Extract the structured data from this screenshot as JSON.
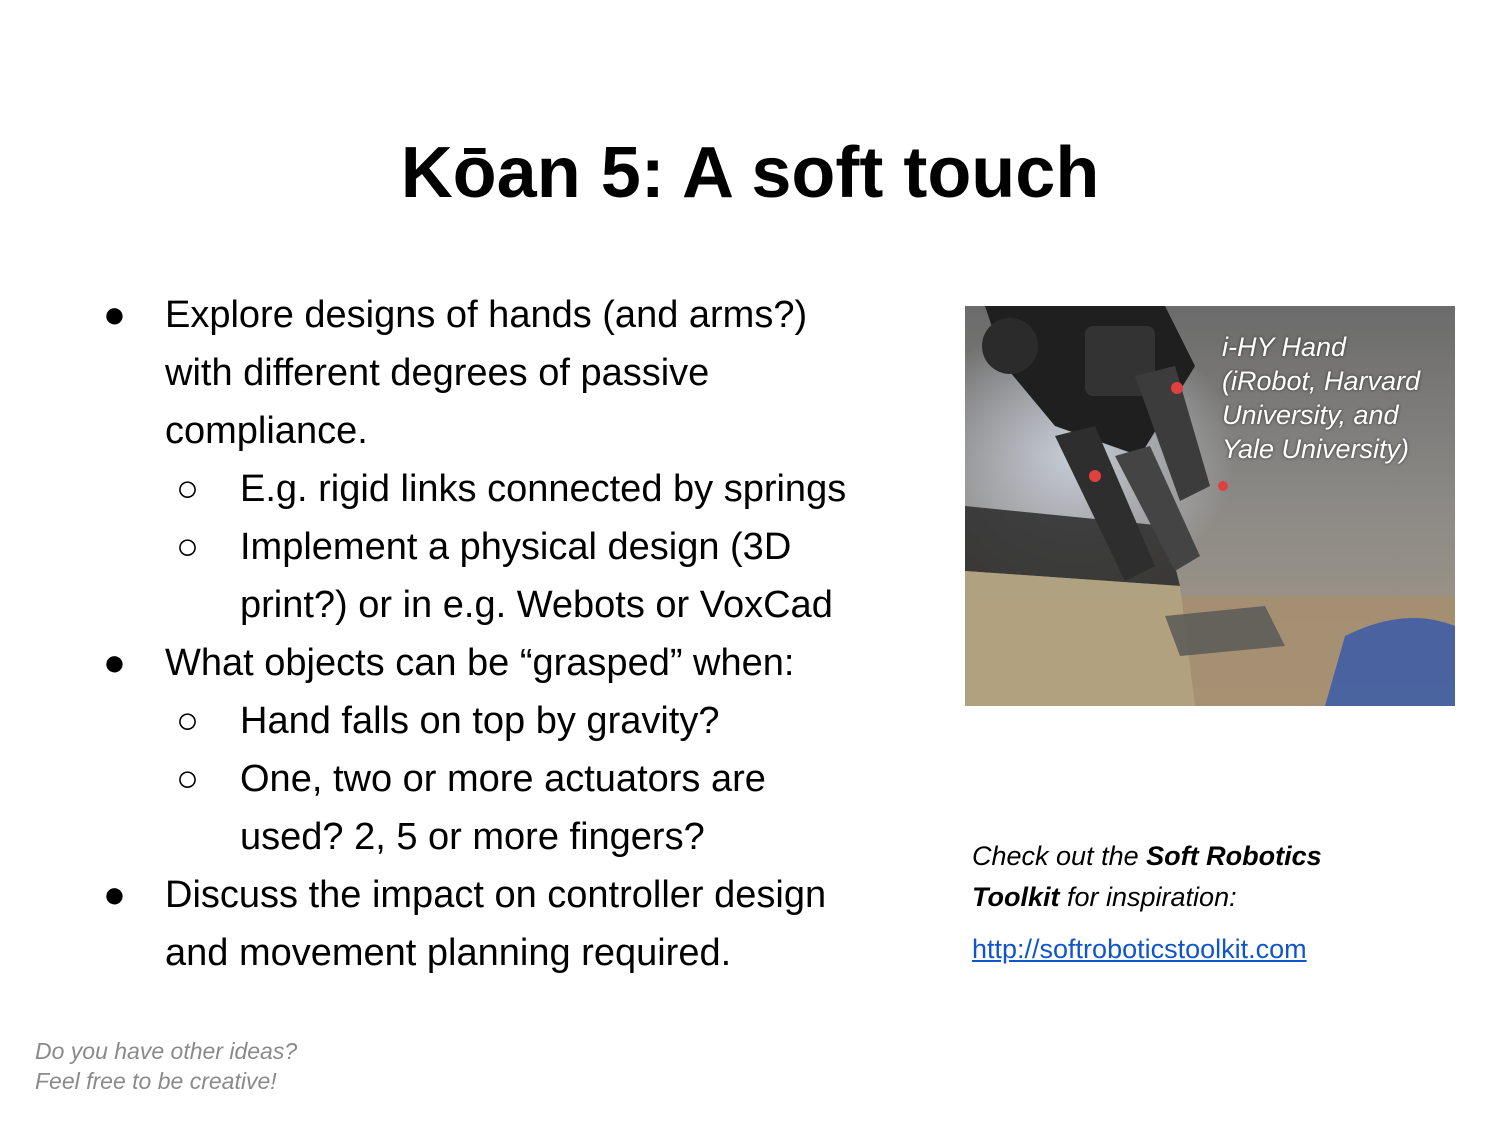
{
  "slide": {
    "title": "Kōan 5: A soft touch"
  },
  "bullets": [
    {
      "text_lines": [
        "Explore designs of hands (and arms?)",
        "with different degrees of passive",
        "compliance."
      ],
      "sub": [
        {
          "text_lines": [
            "E.g. rigid links connected by springs"
          ]
        },
        {
          "text_lines": [
            "Implement a physical design (3D",
            "print?) or in e.g. Webots or VoxCad"
          ]
        }
      ]
    },
    {
      "text_lines": [
        "What objects can be “grasped” when:"
      ],
      "sub": [
        {
          "text_lines": [
            "Hand falls on top by gravity?"
          ]
        },
        {
          "text_lines": [
            "One, two or more actuators are",
            "used? 2, 5 or more fingers?"
          ]
        }
      ]
    },
    {
      "text_lines": [
        "Discuss the impact on controller design",
        "and movement planning required."
      ]
    }
  ],
  "bullet_glyph": "●",
  "sub_bullet_glyph": "○",
  "photo": {
    "caption_lines": [
      "i-HY Hand",
      "(iRobot, Harvard",
      "University, and",
      "Yale University)"
    ]
  },
  "resource": {
    "check_prefix": "Check out the ",
    "check_bold_1": "Soft Robotics",
    "check_bold_2": "Toolkit",
    "check_suffix": " for inspiration:",
    "link_text": "http://softroboticstoolkit.com",
    "link_color": "#1155cc"
  },
  "footer": {
    "line1": "Do you have other ideas?",
    "line2": "Feel free to be creative!"
  }
}
